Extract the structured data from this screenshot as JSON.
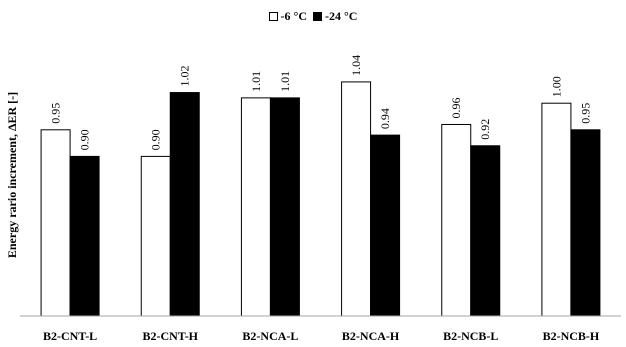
{
  "chart_data": {
    "type": "bar",
    "title": "",
    "xlabel": "",
    "ylabel": "Energy rario increment, ΔER [-]",
    "categories": [
      "B2-CNT-L",
      "B2-CNT-H",
      "B2-NCA-L",
      "B2-NCA-H",
      "B2-NCB-L",
      "B2-NCB-H"
    ],
    "series": [
      {
        "name": "-6 °C",
        "color": "#ffffff",
        "values": [
          0.95,
          0.9,
          1.01,
          1.04,
          0.96,
          1.0
        ],
        "labels": [
          "0.95",
          "0.90",
          "1.01",
          "1.04",
          "0.96",
          "1.00"
        ]
      },
      {
        "name": "-24 °C",
        "color": "#000000",
        "values": [
          0.9,
          1.02,
          1.01,
          0.94,
          0.92,
          0.95
        ],
        "labels": [
          "0.90",
          "1.02",
          "1.01",
          "0.94",
          "0.92",
          "0.95"
        ]
      }
    ],
    "ylim": [
      0.6,
      1.1
    ],
    "grid": false,
    "legend_position": "top-center",
    "data_labels": true
  }
}
